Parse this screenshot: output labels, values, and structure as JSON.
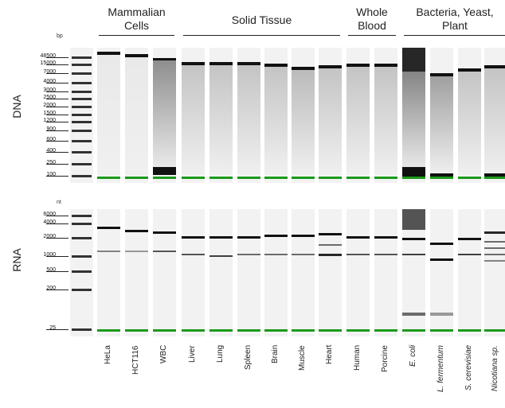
{
  "groups": [
    {
      "label": "Mammalian\nCells",
      "lanes": [
        1,
        3
      ]
    },
    {
      "label": "Solid Tissue",
      "lanes": [
        4,
        9
      ]
    },
    {
      "label": "Whole\nBlood",
      "lanes": [
        10,
        11
      ]
    },
    {
      "label": "Bacteria, Yeast,\nPlant",
      "lanes": [
        12,
        15
      ]
    }
  ],
  "panels": {
    "dna": {
      "label": "DNA",
      "unit": "bp",
      "ladder": [
        "48500",
        "15000",
        "7000",
        "4000",
        "3000",
        "2500",
        "2000",
        "1500",
        "1200",
        "900",
        "600",
        "400",
        "250",
        "100"
      ]
    },
    "rna": {
      "label": "RNA",
      "unit": "nt",
      "ladder": [
        "6000",
        "4000",
        "2000",
        "1000",
        "500",
        "200",
        "25"
      ]
    }
  },
  "samples": [
    {
      "name": "HeLa",
      "italic": false
    },
    {
      "name": "HCT116",
      "italic": false
    },
    {
      "name": "WBC",
      "italic": false
    },
    {
      "name": "Liver",
      "italic": false
    },
    {
      "name": "Lung",
      "italic": false
    },
    {
      "name": "Spleen",
      "italic": false
    },
    {
      "name": "Brain",
      "italic": false
    },
    {
      "name": "Muscle",
      "italic": false
    },
    {
      "name": "Heart",
      "italic": false
    },
    {
      "name": "Human",
      "italic": false
    },
    {
      "name": "Porcine",
      "italic": false
    },
    {
      "name": "E. coli",
      "italic": true
    },
    {
      "name": "L. fermentum",
      "italic": true
    },
    {
      "name": "S. cerevisiae",
      "italic": true
    },
    {
      "name": "Nicotiana sp.",
      "italic": true
    }
  ],
  "colors": {
    "marker": "#1a9a1a",
    "band": "#111111",
    "lane_bg": "#f2f2f2"
  }
}
